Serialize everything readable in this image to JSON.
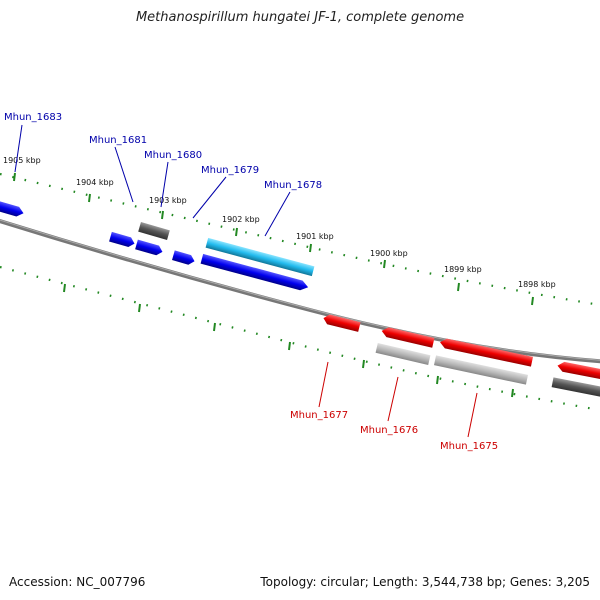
{
  "title": "Methanospirillum hungatei JF-1, complete genome",
  "accession": "Accession: NC_007796",
  "summary": "Topology: circular; Length: 3,544,738 bp; Genes: 3,205",
  "colors": {
    "forward_gene": "#0000ee",
    "reverse_gene": "#ee0000",
    "selected_gene": "#22bbee",
    "pseudo_gene": "#666666",
    "light_feature": "#b8b8b8",
    "backbone": "#777777",
    "tick": "#228822",
    "forward_label": "#0000aa",
    "reverse_label": "#cc0000"
  },
  "kbp_ticks": [
    {
      "label": "1905 kbp"
    },
    {
      "label": "1904 kbp"
    },
    {
      "label": "1903 kbp"
    },
    {
      "label": "1902 kbp"
    },
    {
      "label": "1901 kbp"
    },
    {
      "label": "1900 kbp"
    },
    {
      "label": "1899 kbp"
    },
    {
      "label": "1898 kbp"
    }
  ],
  "gene_labels": [
    {
      "name": "Mhun_1683",
      "strand": "forward"
    },
    {
      "name": "Mhun_1681",
      "strand": "forward"
    },
    {
      "name": "Mhun_1680",
      "strand": "forward"
    },
    {
      "name": "Mhun_1679",
      "strand": "forward"
    },
    {
      "name": "Mhun_1678",
      "strand": "forward"
    },
    {
      "name": "Mhun_1677",
      "strand": "reverse"
    },
    {
      "name": "Mhun_1676",
      "strand": "reverse"
    },
    {
      "name": "Mhun_1675",
      "strand": "reverse"
    }
  ]
}
